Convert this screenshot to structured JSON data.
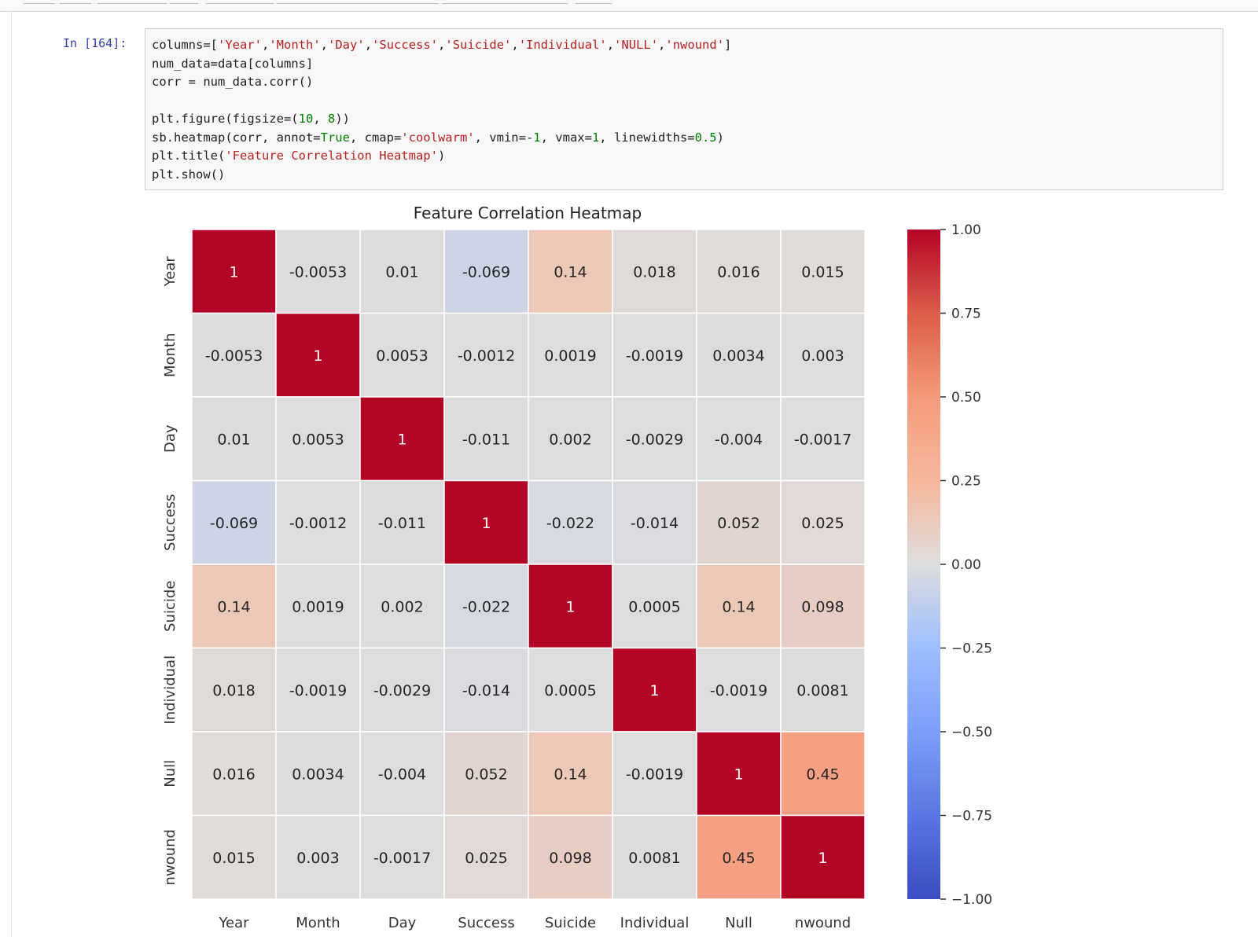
{
  "cell": {
    "prompt": "In [164]:",
    "code_lines": [
      "columns=['Year','Month','Day','Success','Suicide','Individual','NULL','nwound']",
      "num_data=data[columns]",
      "corr = num_data.corr()",
      "",
      "plt.figure(figsize=(10, 8))",
      "sb.heatmap(corr, annot=True, cmap='coolwarm', vmin=-1, vmax=1, linewidths=0.5)",
      "plt.title('Feature Correlation Heatmap')",
      "plt.show()"
    ]
  },
  "colors": {
    "neg": "#3b4cc0",
    "mid": "#dddddd",
    "pos": "#b40426",
    "code_string": "#ba2121",
    "code_number": "#008000",
    "code_keyword": "#008000"
  },
  "chart_data": {
    "type": "heatmap",
    "title": "Feature Correlation Heatmap",
    "row_labels": [
      "Year",
      "Month",
      "Day",
      "Success",
      "Suicide",
      "Individual",
      "Null",
      "nwound"
    ],
    "col_labels": [
      "Year",
      "Month",
      "Day",
      "Success",
      "Suicide",
      "Individual",
      "Null",
      "nwound"
    ],
    "values": [
      [
        1,
        -0.0053,
        0.01,
        -0.069,
        0.14,
        0.018,
        0.016,
        0.015
      ],
      [
        -0.0053,
        1,
        0.0053,
        -0.0012,
        0.0019,
        -0.0019,
        0.0034,
        0.003
      ],
      [
        0.01,
        0.0053,
        1,
        -0.011,
        0.002,
        -0.0029,
        -0.004,
        -0.0017
      ],
      [
        -0.069,
        -0.0012,
        -0.011,
        1,
        -0.022,
        -0.014,
        0.052,
        0.025
      ],
      [
        0.14,
        0.0019,
        0.002,
        -0.022,
        1,
        0.0005,
        0.14,
        0.098
      ],
      [
        0.018,
        -0.0019,
        -0.0029,
        -0.014,
        0.0005,
        1,
        -0.0019,
        0.0081
      ],
      [
        0.016,
        0.0034,
        -0.004,
        0.052,
        0.14,
        -0.0019,
        1,
        0.45
      ],
      [
        0.015,
        0.003,
        -0.0017,
        0.025,
        0.098,
        0.0081,
        0.45,
        1
      ]
    ],
    "annotations": [
      [
        "1",
        "-0.0053",
        "0.01",
        "-0.069",
        "0.14",
        "0.018",
        "0.016",
        "0.015"
      ],
      [
        "-0.0053",
        "1",
        "0.0053",
        "-0.0012",
        "0.0019",
        "-0.0019",
        "0.0034",
        "0.003"
      ],
      [
        "0.01",
        "0.0053",
        "1",
        "-0.011",
        "0.002",
        "-0.0029",
        "-0.004",
        "-0.0017"
      ],
      [
        "-0.069",
        "-0.0012",
        "-0.011",
        "1",
        "-0.022",
        "-0.014",
        "0.052",
        "0.025"
      ],
      [
        "0.14",
        "0.0019",
        "0.002",
        "-0.022",
        "1",
        "0.0005",
        "0.14",
        "0.098"
      ],
      [
        "0.018",
        "-0.0019",
        "-0.0029",
        "-0.014",
        "0.0005",
        "1",
        "-0.0019",
        "0.0081"
      ],
      [
        "0.016",
        "0.0034",
        "-0.004",
        "0.052",
        "0.14",
        "-0.0019",
        "1",
        "0.45"
      ],
      [
        "0.015",
        "0.003",
        "-0.0017",
        "0.025",
        "0.098",
        "0.0081",
        "0.45",
        "1"
      ]
    ],
    "vmin": -1,
    "vmax": 1,
    "colormap": "coolwarm",
    "colorbar_ticks": [
      1.0,
      0.75,
      0.5,
      0.25,
      0.0,
      -0.25,
      -0.5,
      -0.75,
      -1.0
    ],
    "colorbar_tick_labels": [
      "1.00",
      "0.75",
      "0.50",
      "0.25",
      "0.00",
      "−0.25",
      "−0.50",
      "−0.75",
      "−1.00"
    ],
    "xlabel": "",
    "ylabel": ""
  }
}
